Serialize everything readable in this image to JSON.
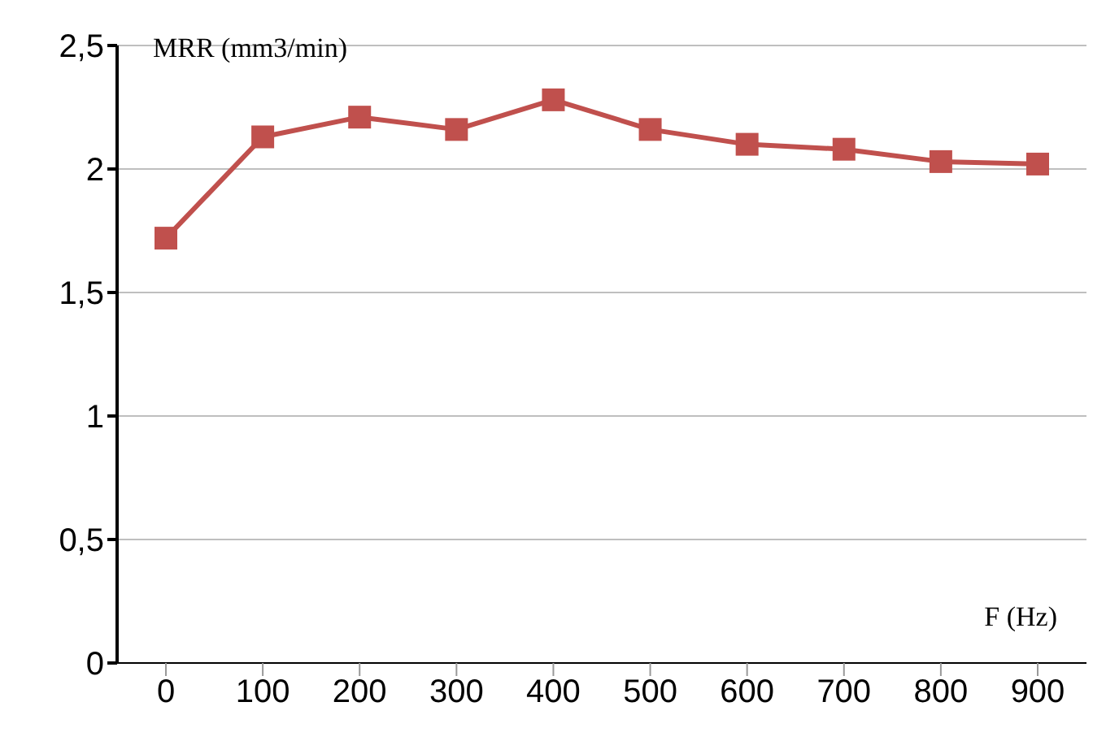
{
  "chart_data": {
    "type": "line",
    "xlabel": "F (Hz)",
    "ylabel": "MRR (mm3/min)",
    "categories": [
      "0",
      "100",
      "200",
      "300",
      "400",
      "500",
      "600",
      "700",
      "800",
      "900"
    ],
    "series": [
      {
        "color": "#c0504d",
        "values": [
          1.72,
          2.13,
          2.21,
          2.16,
          2.28,
          2.16,
          2.1,
          2.08,
          2.03,
          2.02
        ]
      }
    ],
    "ylim": [
      0,
      2.5
    ],
    "yticks": [
      0,
      {
        "value": 0.5,
        "label": "0,5"
      },
      1,
      {
        "value": 1.5,
        "label": "1,5"
      },
      2,
      {
        "value": 2.5,
        "label": "2,5"
      }
    ],
    "grid": "y",
    "marker": "square",
    "line_style": "solid",
    "legend": false
  }
}
